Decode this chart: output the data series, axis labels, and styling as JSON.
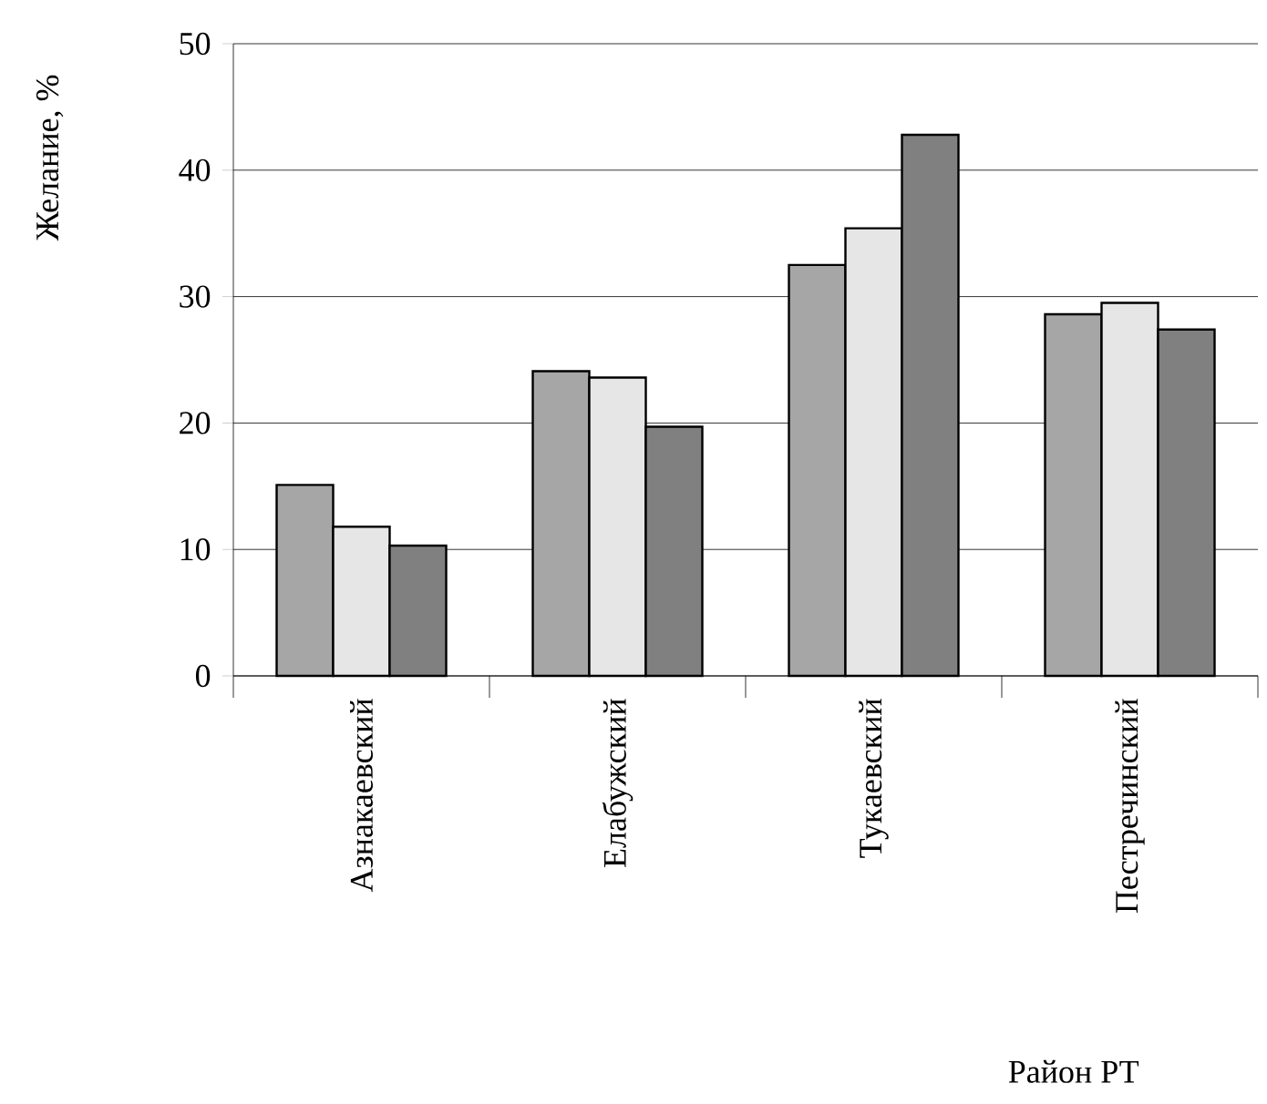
{
  "chart_data": {
    "type": "bar",
    "xlabel": "Район РТ",
    "ylabel": "Желание, %",
    "categories": [
      "Азнакаевский",
      "Елабужский",
      "Тукаевский",
      "Пестречинский"
    ],
    "series": [
      {
        "color": "#a6a6a6",
        "values": [
          15.1,
          24.1,
          32.5,
          28.6
        ]
      },
      {
        "color": "#e6e6e6",
        "values": [
          11.8,
          23.6,
          35.4,
          29.5
        ]
      },
      {
        "color": "#808080",
        "values": [
          10.3,
          19.7,
          42.8,
          27.4
        ]
      }
    ],
    "ylim": [
      0,
      50
    ],
    "yticks": [
      0,
      10,
      20,
      30,
      40,
      50
    ],
    "grid": "y"
  }
}
